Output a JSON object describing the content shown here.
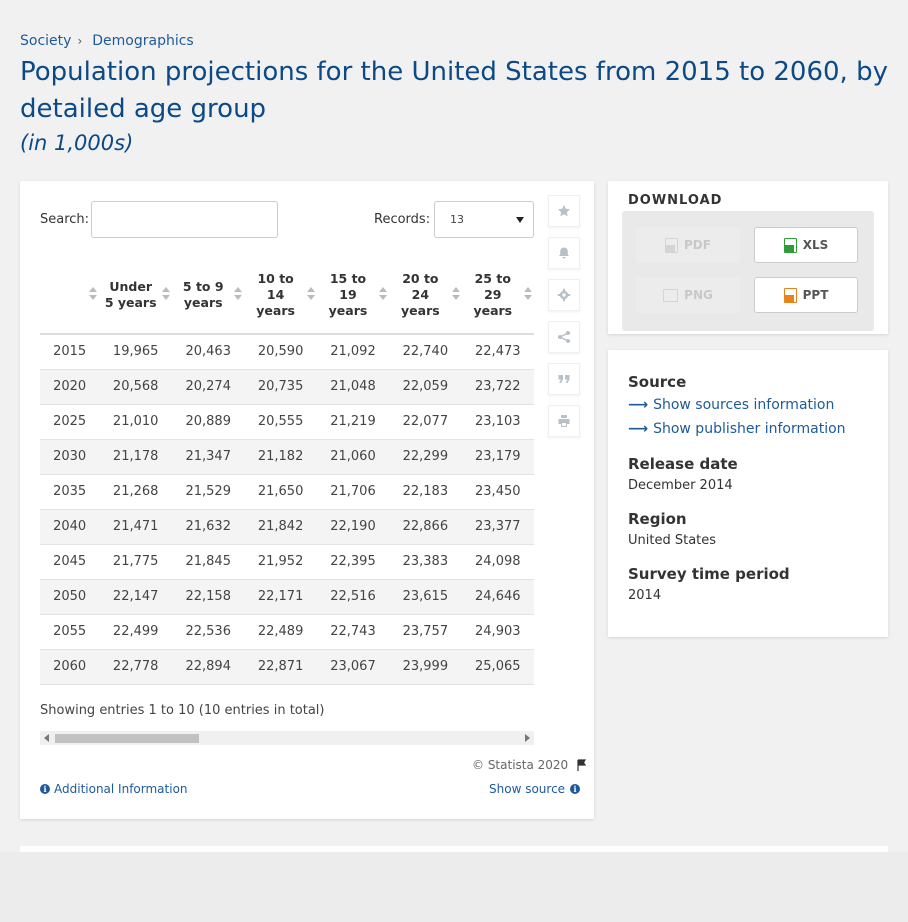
{
  "breadcrumb": {
    "items": [
      "Society",
      "Demographics"
    ],
    "separator": "›"
  },
  "title": "Population projections for the United States from 2015 to 2060, by detailed age group",
  "subtitle": "(in 1,000s)",
  "controls": {
    "search_label": "Search:",
    "search_value": "",
    "records_label": "Records:",
    "records_value": "13"
  },
  "table": {
    "columns": [
      "",
      "Under 5 years",
      "5 to 9 years",
      "10 to 14 years",
      "15 to 19 years",
      "20 to 24 years",
      "25 to 29 years"
    ],
    "rows": [
      [
        "2015",
        "19,965",
        "20,463",
        "20,590",
        "21,092",
        "22,740",
        "22,473"
      ],
      [
        "2020",
        "20,568",
        "20,274",
        "20,735",
        "21,048",
        "22,059",
        "23,722"
      ],
      [
        "2025",
        "21,010",
        "20,889",
        "20,555",
        "21,219",
        "22,077",
        "23,103"
      ],
      [
        "2030",
        "21,178",
        "21,347",
        "21,182",
        "21,060",
        "22,299",
        "23,179"
      ],
      [
        "2035",
        "21,268",
        "21,529",
        "21,650",
        "21,706",
        "22,183",
        "23,450"
      ],
      [
        "2040",
        "21,471",
        "21,632",
        "21,842",
        "22,190",
        "22,866",
        "23,377"
      ],
      [
        "2045",
        "21,775",
        "21,845",
        "21,952",
        "22,395",
        "23,383",
        "24,098"
      ],
      [
        "2050",
        "22,147",
        "22,158",
        "22,171",
        "22,516",
        "23,615",
        "24,646"
      ],
      [
        "2055",
        "22,499",
        "22,536",
        "22,489",
        "22,743",
        "23,757",
        "24,903"
      ],
      [
        "2060",
        "22,778",
        "22,894",
        "22,871",
        "23,067",
        "23,999",
        "25,065"
      ]
    ]
  },
  "footer": {
    "showing": "Showing entries 1 to 10 (10 entries in total)",
    "copyright": "© Statista 2020",
    "additional_info": "Additional Information",
    "show_source": "Show source"
  },
  "download": {
    "heading": "DOWNLOAD",
    "buttons": [
      {
        "label": "PDF",
        "enabled": false
      },
      {
        "label": "XLS",
        "enabled": true
      },
      {
        "label": "PNG",
        "enabled": false
      },
      {
        "label": "PPT",
        "enabled": true
      }
    ]
  },
  "info": {
    "source_heading": "Source",
    "show_sources": "Show sources information",
    "show_publisher": "Show publisher information",
    "release_heading": "Release date",
    "release_value": "December 2014",
    "region_heading": "Region",
    "region_value": "United States",
    "survey_heading": "Survey time period",
    "survey_value": "2014"
  },
  "icons": [
    "star-icon",
    "bell-icon",
    "gear-icon",
    "share-icon",
    "quote-icon",
    "print-icon",
    "flag-icon",
    "info-icon",
    "arrow-right-icon"
  ],
  "colors": {
    "title": "#0b4a87",
    "link": "#1e5a9a",
    "xls": "#2e9c3a",
    "ppt": "#e8821a"
  }
}
